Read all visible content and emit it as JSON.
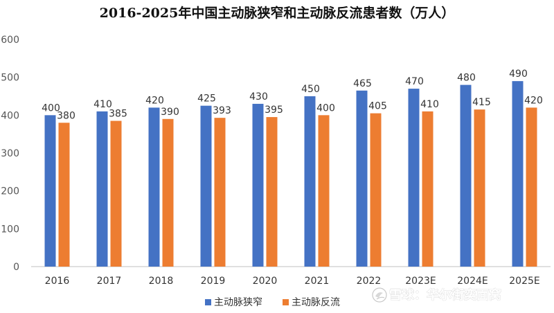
{
  "chart_data": {
    "type": "bar",
    "title": "2016-2025年中国主动脉狭窄和主动脉反流患者数（万人）",
    "xlabel": "",
    "ylabel": "",
    "ylim": [
      0,
      600
    ],
    "yticks": [
      0,
      100,
      200,
      300,
      400,
      500,
      600
    ],
    "grid": false,
    "legend_position": "bottom-center",
    "categories": [
      "2016",
      "2017",
      "2018",
      "2019",
      "2020",
      "2021",
      "2022",
      "2023E",
      "2024E",
      "2025E"
    ],
    "series": [
      {
        "name": "主动脉狭窄",
        "color": "#4472C4",
        "values": [
          400,
          410,
          420,
          425,
          430,
          450,
          465,
          470,
          480,
          490
        ]
      },
      {
        "name": "主动脉反流",
        "color": "#ED7D31",
        "values": [
          380,
          385,
          390,
          393,
          395,
          400,
          405,
          410,
          415,
          420
        ]
      }
    ]
  },
  "watermark": {
    "text": "雪球：华尔街奕面窝",
    "icon": "snowball-logo-icon"
  }
}
